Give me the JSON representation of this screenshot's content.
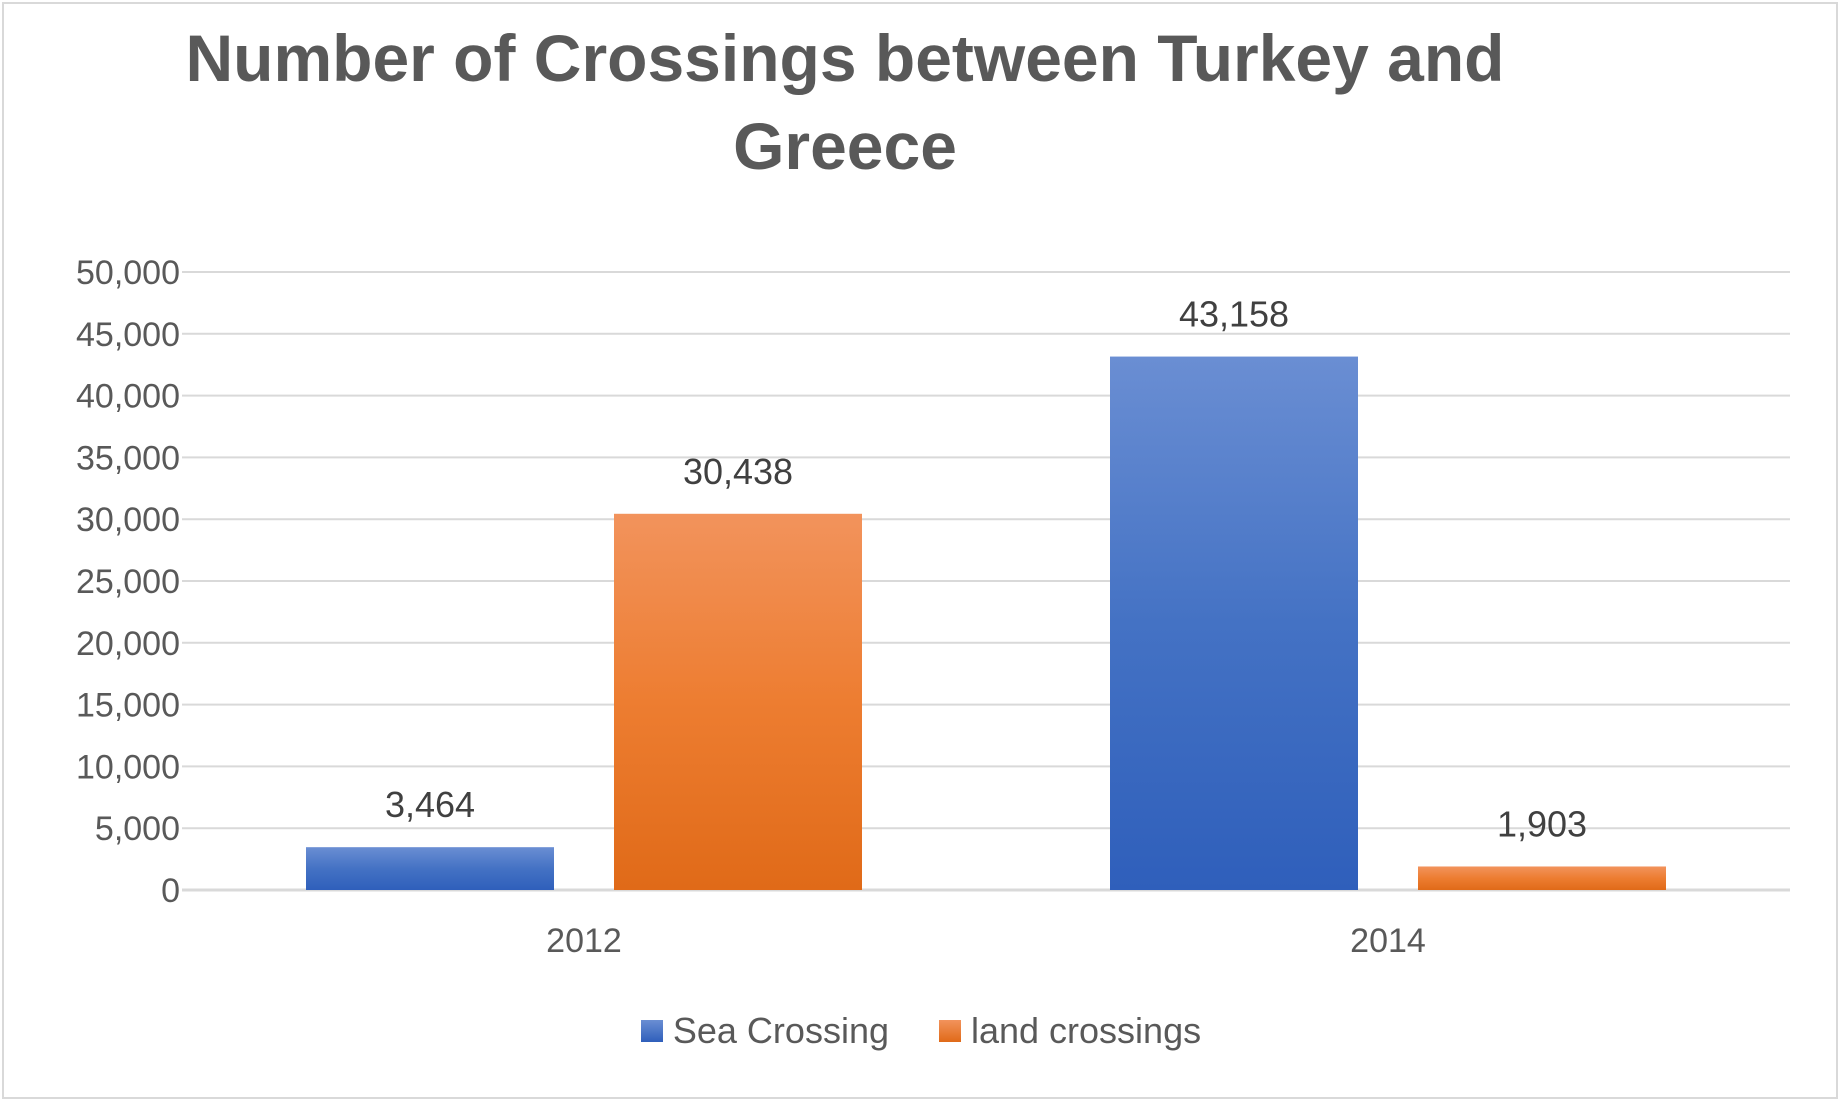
{
  "chart_data": {
    "type": "bar",
    "title": "Number of Crossings between Turkey and Greece",
    "xlabel": "",
    "ylabel": "",
    "categories": [
      "2012",
      "2014"
    ],
    "series": [
      {
        "name": "Sea Crossing",
        "values": [
          3464,
          43158
        ],
        "labels": [
          "3,464",
          "43,158"
        ],
        "color": "#4472c4",
        "color_light": "#6a8ed3",
        "color_dark": "#2f5fbb"
      },
      {
        "name": "land crossings",
        "values": [
          30438,
          1903
        ],
        "labels": [
          "30,438",
          "1,903"
        ],
        "color": "#ed7d31",
        "color_light": "#f2935c",
        "color_dark": "#e06a18"
      }
    ],
    "ylim": [
      0,
      50000
    ],
    "y_ticks": [
      {
        "value": 0,
        "label": "0"
      },
      {
        "value": 5000,
        "label": "5,000"
      },
      {
        "value": 10000,
        "label": "10,000"
      },
      {
        "value": 15000,
        "label": "15,000"
      },
      {
        "value": 20000,
        "label": "20,000"
      },
      {
        "value": 25000,
        "label": "25,000"
      },
      {
        "value": 30000,
        "label": "30,000"
      },
      {
        "value": 35000,
        "label": "35,000"
      },
      {
        "value": 40000,
        "label": "40,000"
      },
      {
        "value": 45000,
        "label": "45,000"
      },
      {
        "value": 50000,
        "label": "50,000"
      }
    ],
    "grid": true,
    "legend_position": "bottom",
    "gridline_color": "#d9d9d9"
  }
}
